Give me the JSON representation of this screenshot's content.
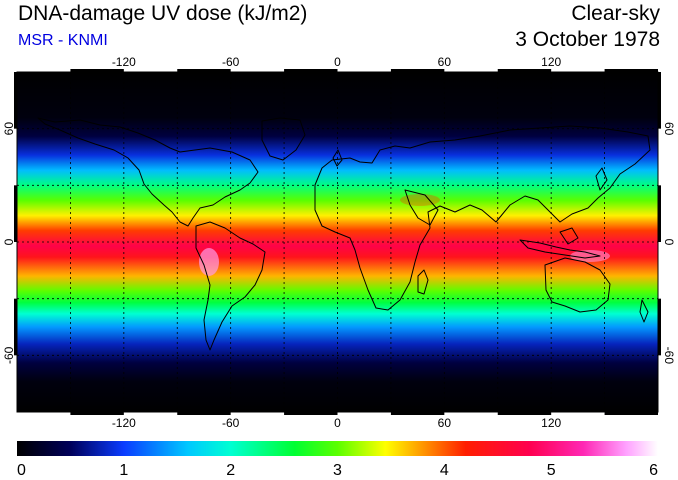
{
  "header": {
    "title": "DNA-damage UV dose (kJ/m2)",
    "source": "MSR - KNMI",
    "sky_condition": "Clear-sky",
    "date": "3 October 1978"
  },
  "colors": {
    "source_text": "#0000e0"
  },
  "map": {
    "projection": "equirectangular",
    "lon_range": [
      -180,
      180
    ],
    "lat_range": [
      -90,
      90
    ],
    "lon_ticks": [
      {
        "value": -120,
        "label": "-120"
      },
      {
        "value": -60,
        "label": "-60"
      },
      {
        "value": 0,
        "label": "0"
      },
      {
        "value": 60,
        "label": "60"
      },
      {
        "value": 120,
        "label": "120"
      }
    ],
    "lat_ticks": [
      {
        "value": 60,
        "label": "60"
      },
      {
        "value": 0,
        "label": "0"
      },
      {
        "value": -60,
        "label": "-60"
      }
    ],
    "grid_lons": [
      -150,
      -120,
      -90,
      -60,
      -30,
      0,
      30,
      60,
      90,
      120,
      150
    ],
    "grid_lats": [
      -60,
      -30,
      0,
      30,
      60
    ]
  },
  "colorbar": {
    "min": 0,
    "max": 6,
    "tick_labels": [
      "0",
      "1",
      "2",
      "3",
      "4",
      "5",
      "6"
    ],
    "stops": [
      {
        "value": 0,
        "color": "#000000"
      },
      {
        "value": 0.5,
        "color": "#00005a"
      },
      {
        "value": 1,
        "color": "#0a3cff"
      },
      {
        "value": 1.6,
        "color": "#00c8ff"
      },
      {
        "value": 2,
        "color": "#00ffd2"
      },
      {
        "value": 2.6,
        "color": "#00ff32"
      },
      {
        "value": 3,
        "color": "#5aff00"
      },
      {
        "value": 3.45,
        "color": "#ffff00"
      },
      {
        "value": 3.8,
        "color": "#ff9600"
      },
      {
        "value": 4.2,
        "color": "#ff1e00"
      },
      {
        "value": 4.8,
        "color": "#ff0050"
      },
      {
        "value": 5.3,
        "color": "#ff28b4"
      },
      {
        "value": 5.7,
        "color": "#ffa0ff"
      },
      {
        "value": 6,
        "color": "#ffffff"
      }
    ]
  },
  "uv_profile": [
    {
      "lat": -90,
      "value": 0.0
    },
    {
      "lat": -74,
      "value": 0.08
    },
    {
      "lat": -64,
      "value": 0.35
    },
    {
      "lat": -54,
      "value": 0.8
    },
    {
      "lat": -45,
      "value": 1.4
    },
    {
      "lat": -38,
      "value": 2.0
    },
    {
      "lat": -32,
      "value": 2.55
    },
    {
      "lat": -26,
      "value": 3.0
    },
    {
      "lat": -18,
      "value": 3.7
    },
    {
      "lat": -8,
      "value": 4.4
    },
    {
      "lat": -2,
      "value": 4.75
    },
    {
      "lat": 6,
      "value": 4.1
    },
    {
      "lat": 14,
      "value": 3.5
    },
    {
      "lat": 22,
      "value": 3.0
    },
    {
      "lat": 30,
      "value": 2.3
    },
    {
      "lat": 38,
      "value": 1.55
    },
    {
      "lat": 46,
      "value": 0.9
    },
    {
      "lat": 56,
      "value": 0.35
    },
    {
      "lat": 66,
      "value": 0.08
    },
    {
      "lat": 90,
      "value": 0.0
    }
  ]
}
